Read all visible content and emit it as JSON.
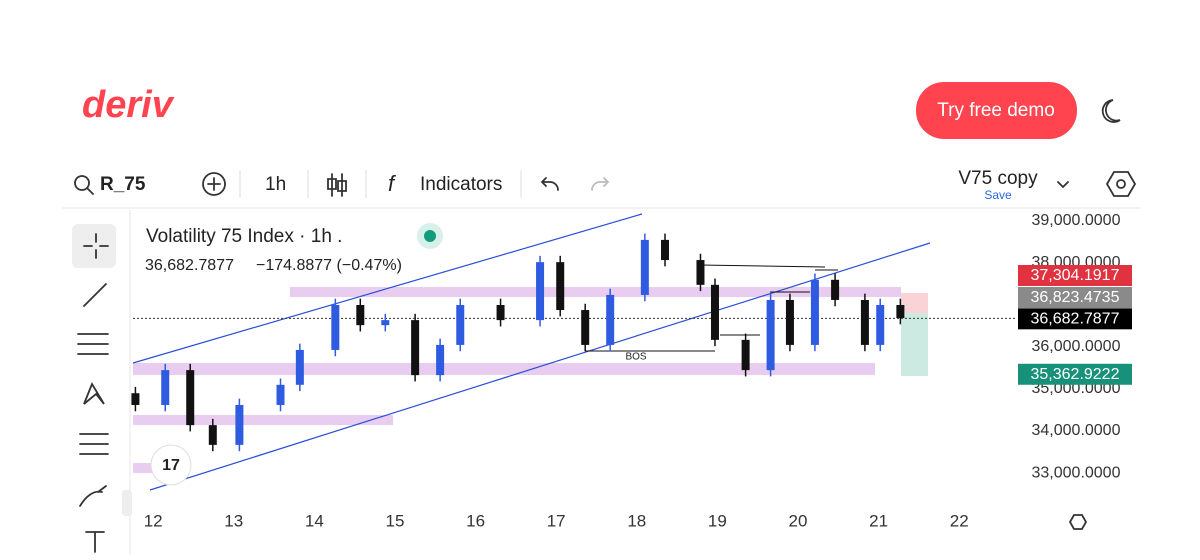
{
  "header": {
    "logo": "deriv",
    "cta": "Try free demo"
  },
  "toolbar": {
    "symbol": "R_75",
    "interval": "1h",
    "indicators": "Indicators",
    "layout_name": "V75 copy",
    "save": "Save"
  },
  "chart_data": {
    "type": "candlestick",
    "title": "Volatility 75 Index · 1h .",
    "quote": "36,682.7877",
    "change": "−174.8877 (−0.47%)",
    "annotation": "BOS",
    "x": [
      11.78,
      12.15,
      12.46,
      12.74,
      13.07,
      13.58,
      13.82,
      14.26,
      14.57,
      14.88,
      15.25,
      15.56,
      15.81,
      16.31,
      16.8,
      17.05,
      17.36,
      17.67,
      18.1,
      18.35,
      18.79,
      18.97,
      19.35,
      19.66,
      19.9,
      20.21,
      20.46,
      20.83,
      21.02,
      21.27
    ],
    "open": [
      34900,
      34620,
      35450,
      34140,
      33670,
      34620,
      35100,
      35930,
      37000,
      36520,
      36640,
      35330,
      36050,
      37000,
      36640,
      38020,
      36880,
      36050,
      37240,
      38550,
      38070,
      37480,
      36170,
      35450,
      37120,
      36050,
      37600,
      37120,
      36050,
      37000
    ],
    "high": [
      35050,
      35600,
      35600,
      34290,
      34770,
      35250,
      36080,
      37150,
      37150,
      36790,
      36790,
      36200,
      37150,
      37150,
      38170,
      38170,
      37030,
      37390,
      38700,
      38700,
      38220,
      37630,
      36320,
      37270,
      37270,
      37750,
      37750,
      37270,
      37150,
      37150
    ],
    "low": [
      34470,
      34470,
      33990,
      33520,
      33520,
      34470,
      34950,
      35780,
      36370,
      36370,
      35180,
      35180,
      35900,
      36490,
      36490,
      36730,
      35900,
      35900,
      37090,
      37920,
      37330,
      36020,
      35300,
      35300,
      35900,
      35900,
      36970,
      35900,
      35900,
      36540
    ],
    "close": [
      34620,
      35450,
      34140,
      33670,
      34620,
      35100,
      35930,
      37000,
      36520,
      36640,
      35330,
      36050,
      37000,
      36640,
      38020,
      36880,
      36050,
      37240,
      38550,
      38070,
      37480,
      36170,
      35450,
      37120,
      36050,
      37600,
      37120,
      36050,
      37000,
      36690
    ],
    "up_color": "#2f5be0",
    "down_color": "#111111",
    "xlim": [
      11.75,
      22.63
    ],
    "xticks": [
      12,
      13,
      14,
      15,
      16,
      17,
      18,
      19,
      20,
      21,
      22
    ],
    "ylim": [
      32120,
      39190
    ],
    "yticks": [
      {
        "value": 39000,
        "label": "39,000.0000"
      },
      {
        "value": 38000,
        "label": "38,000.0000"
      },
      {
        "value": 36000,
        "label": "36,000.0000"
      },
      {
        "value": 35000,
        "label": "35,000.0000"
      },
      {
        "value": 34000,
        "label": "34,000.0000"
      },
      {
        "value": 33000,
        "label": "33,000.0000"
      }
    ],
    "price_labels": [
      {
        "value": 37304.1917,
        "label": "37,304.1917",
        "color": "#e0323f"
      },
      {
        "value": 36823.4735,
        "label": "36,823.4735",
        "color": "#8a8a8a"
      },
      {
        "value": 36682.7877,
        "label": "36,682.7877",
        "color": "#000000"
      },
      {
        "value": 35362.9222,
        "label": "35,362.9222",
        "color": "#17917a"
      }
    ]
  }
}
